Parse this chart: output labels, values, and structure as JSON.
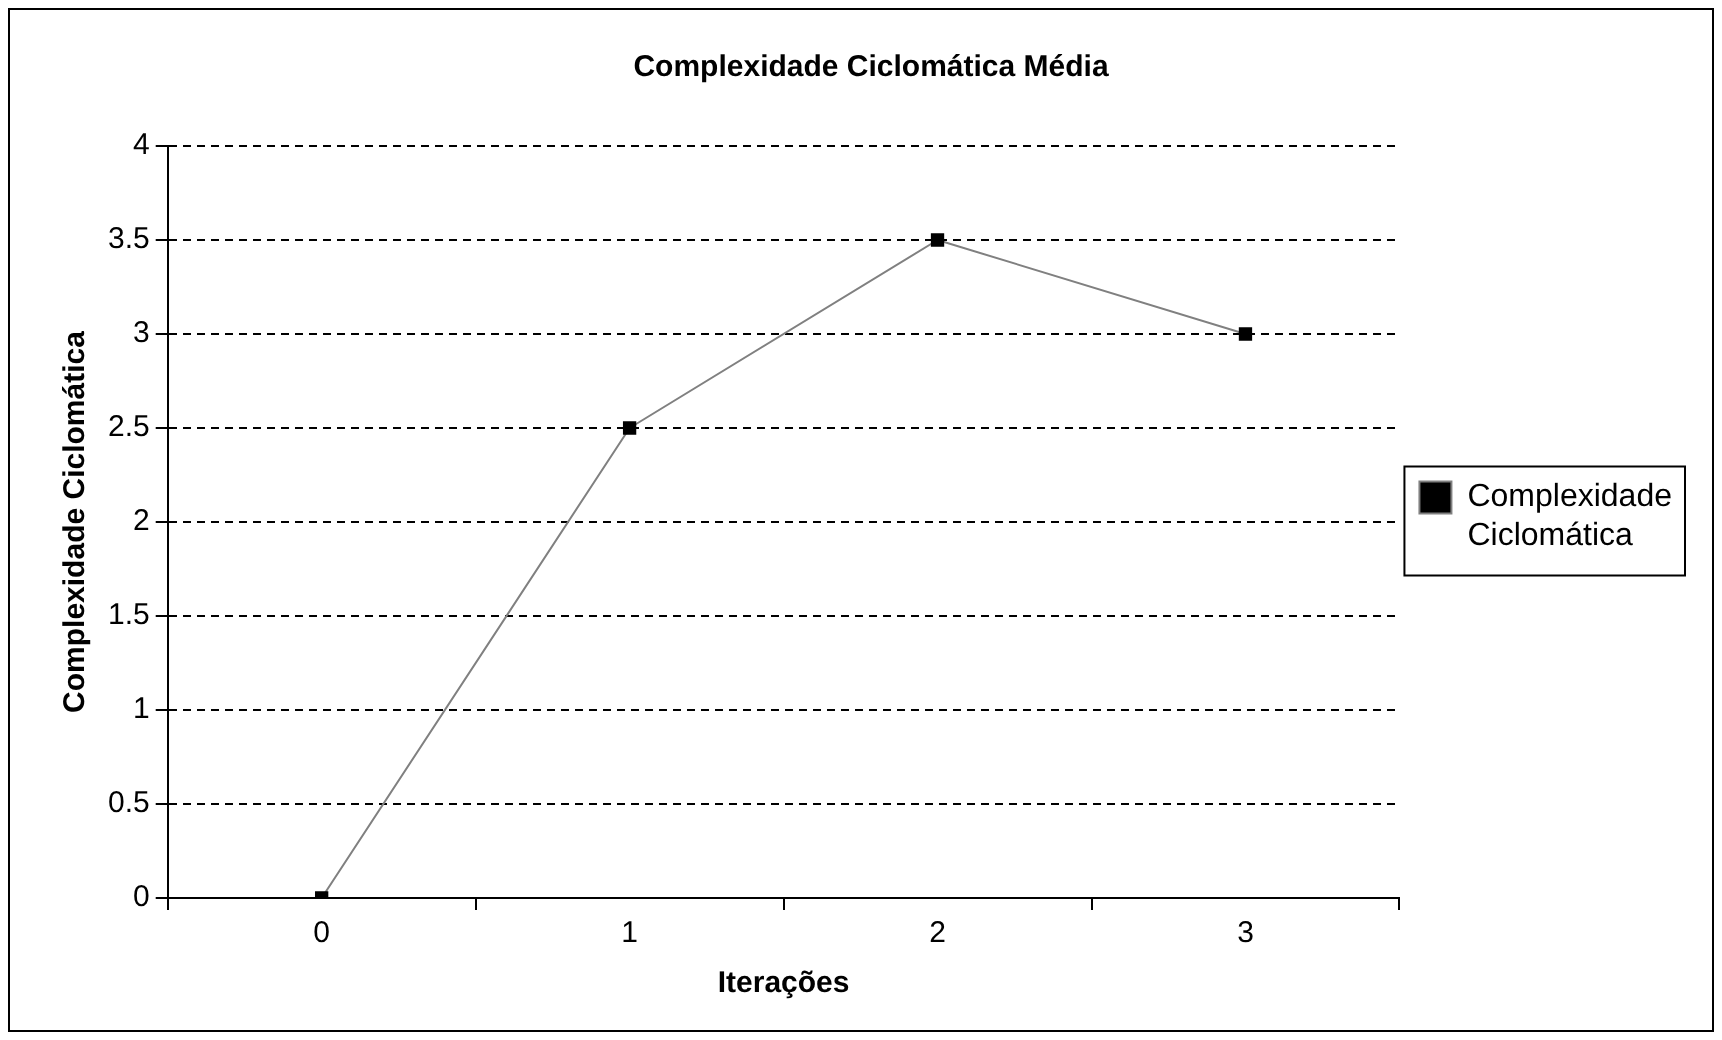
{
  "chart_data": {
    "type": "line",
    "title": "Complexidade Ciclomática Média",
    "xlabel": "Iterações",
    "ylabel": "Complexidade Ciclomática",
    "categories": [
      "0",
      "1",
      "2",
      "3"
    ],
    "series": [
      {
        "name": "Complexidade Ciclomática",
        "color": "#000000",
        "values": [
          0,
          2.5,
          3.5,
          3
        ]
      }
    ],
    "ylim": [
      0,
      4
    ],
    "yticks": [
      0,
      0.5,
      1,
      1.5,
      2,
      2.5,
      3,
      3.5,
      4
    ],
    "grid": "y",
    "legend": "right",
    "marker": "square",
    "line_style": "solid"
  }
}
